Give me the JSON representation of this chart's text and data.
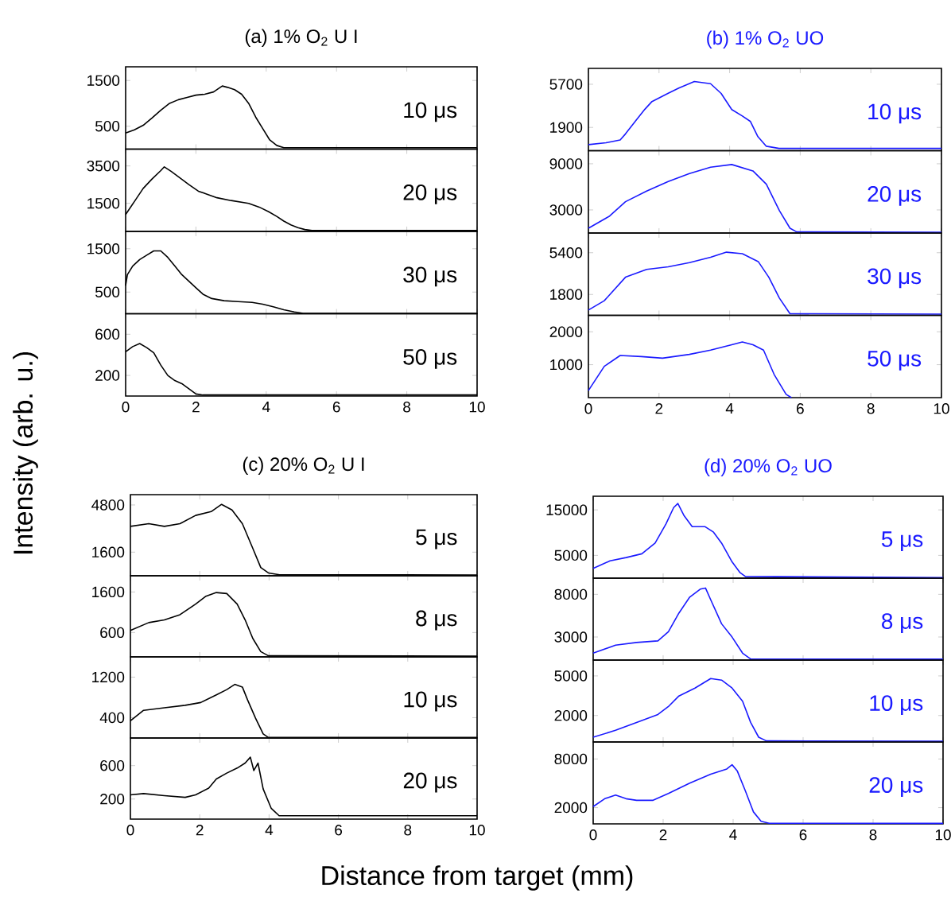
{
  "chart_data": [
    {
      "type": "line",
      "title": "(a) 1% O$_{2}$ U I",
      "color": "#000000",
      "annotations": [
        "10 μs"
      ],
      "xlim": [
        0,
        10
      ],
      "xticks": [
        0,
        2,
        4,
        6,
        8,
        10
      ],
      "ylim": [
        0,
        1800
      ],
      "yticks": [
        500,
        1500
      ],
      "tick_labels": "y",
      "x": [
        0,
        0.25,
        0.5,
        0.75,
        1,
        1.25,
        1.5,
        1.75,
        2,
        2.25,
        2.5,
        2.75,
        2.9,
        3.1,
        3.3,
        3.5,
        3.7,
        3.9,
        4.1,
        4.3,
        4.5,
        5,
        10
      ],
      "values": [
        350,
        420,
        520,
        680,
        850,
        1000,
        1080,
        1130,
        1180,
        1200,
        1250,
        1380,
        1350,
        1300,
        1200,
        1000,
        700,
        450,
        200,
        80,
        30,
        30,
        30
      ]
    },
    {
      "type": "line",
      "color": "#000000",
      "annotations": [
        "20 μs"
      ],
      "xlim": [
        0,
        10
      ],
      "xticks": [
        0,
        2,
        4,
        6,
        8,
        10
      ],
      "ylim": [
        0,
        4400
      ],
      "yticks": [
        1500,
        3500
      ],
      "tick_labels": "y",
      "x": [
        0,
        0.25,
        0.5,
        0.75,
        1,
        1.1,
        1.3,
        1.55,
        1.8,
        2.07,
        2.3,
        2.6,
        3.0,
        3.5,
        3.8,
        4.07,
        4.3,
        4.5,
        4.7,
        4.9,
        5.1,
        5.3,
        10
      ],
      "values": [
        900,
        1600,
        2300,
        2800,
        3250,
        3450,
        3200,
        2850,
        2500,
        2150,
        2000,
        1800,
        1650,
        1500,
        1300,
        1050,
        800,
        550,
        350,
        200,
        100,
        50,
        50
      ]
    },
    {
      "type": "line",
      "color": "#000000",
      "annotations": [
        "30 μs"
      ],
      "xlim": [
        0,
        10
      ],
      "xticks": [
        0,
        2,
        4,
        6,
        8,
        10
      ],
      "ylim": [
        0,
        1900
      ],
      "yticks": [
        500,
        1500
      ],
      "tick_labels": "y",
      "x": [
        0,
        0.05,
        0.2,
        0.4,
        0.6,
        0.8,
        1,
        1.2,
        1.4,
        1.6,
        1.8,
        2,
        2.2,
        2.45,
        2.8,
        3.2,
        3.6,
        3.9,
        4.2,
        4.5,
        4.8,
        5.05,
        10
      ],
      "values": [
        650,
        900,
        1100,
        1250,
        1350,
        1450,
        1450,
        1300,
        1100,
        900,
        750,
        600,
        450,
        350,
        300,
        280,
        260,
        220,
        160,
        90,
        40,
        10,
        10
      ]
    },
    {
      "type": "line",
      "ylabel": "Intensity (arb. u.)",
      "color": "#000000",
      "annotations": [
        "50 μs"
      ],
      "xlim": [
        0,
        10
      ],
      "xticks": [
        0,
        2,
        4,
        6,
        8,
        10
      ],
      "ylim": [
        0,
        800
      ],
      "yticks": [
        200,
        600
      ],
      "x": [
        0,
        0.2,
        0.4,
        0.6,
        0.8,
        1,
        1.2,
        1.4,
        1.6,
        1.8,
        2,
        2.2,
        10
      ],
      "values": [
        430,
        480,
        510,
        470,
        420,
        300,
        200,
        150,
        120,
        70,
        20,
        10,
        10
      ]
    },
    {
      "type": "line",
      "title": "(b) 1% O$_{2}$ UO",
      "color": "#1a1aff",
      "annotations": [
        "10 μs"
      ],
      "xlim": [
        0,
        10
      ],
      "xticks": [
        0,
        2,
        4,
        6,
        8,
        10
      ],
      "ylim": [
        -150,
        7100
      ],
      "yticks": [
        1900,
        5700
      ],
      "tick_labels": "y",
      "x": [
        0,
        0.5,
        0.9,
        1.05,
        1.35,
        1.6,
        1.8,
        2.25,
        2.56,
        3,
        3.46,
        3.76,
        4.06,
        4.36,
        4.59,
        4.8,
        5.04,
        5.4,
        10
      ],
      "values": [
        380,
        550,
        800,
        1330,
        2520,
        3500,
        4180,
        4890,
        5370,
        5940,
        5750,
        4890,
        3470,
        2900,
        2420,
        1090,
        240,
        50,
        50
      ]
    },
    {
      "type": "line",
      "color": "#1a1aff",
      "annotations": [
        "20 μs"
      ],
      "xlim": [
        0,
        10
      ],
      "xticks": [
        0,
        2,
        4,
        6,
        8,
        10
      ],
      "ylim": [
        0,
        10700
      ],
      "yticks": [
        3000,
        9000
      ],
      "tick_labels": "y",
      "x": [
        0,
        0.6,
        1.05,
        1.65,
        2.26,
        2.86,
        3.46,
        4.06,
        4.66,
        5.04,
        5.41,
        5.71,
        5.9,
        10
      ],
      "values": [
        620,
        2200,
        4070,
        5450,
        6700,
        7730,
        8560,
        8900,
        8070,
        6350,
        2900,
        620,
        140,
        100
      ]
    },
    {
      "type": "line",
      "color": "#1a1aff",
      "annotations": [
        "30 μs"
      ],
      "xlim": [
        0,
        10
      ],
      "xticks": [
        0,
        2,
        4,
        6,
        8,
        10
      ],
      "ylim": [
        0,
        7100
      ],
      "yticks": [
        1800,
        5400
      ],
      "tick_labels": "y",
      "x": [
        0,
        0.45,
        1.05,
        1.65,
        2.26,
        2.86,
        3.46,
        3.91,
        4.36,
        4.81,
        5.11,
        5.41,
        5.71,
        10
      ],
      "values": [
        450,
        1260,
        3285,
        3960,
        4185,
        4545,
        5000,
        5445,
        5310,
        4635,
        3285,
        1485,
        135,
        100
      ]
    },
    {
      "type": "line",
      "color": "#1a1aff",
      "annotations": [
        "50 μs"
      ],
      "xlim": [
        0,
        10
      ],
      "xticks": [
        0,
        2,
        4,
        6,
        8,
        10
      ],
      "ylim": [
        0,
        2500
      ],
      "yticks": [
        1000,
        2000
      ],
      "x": [
        0,
        0.45,
        0.9,
        1.5,
        2.1,
        2.86,
        3.46,
        4.06,
        4.36,
        4.66,
        4.96,
        5.26,
        5.6,
        5.75
      ],
      "values": [
        213,
        950,
        1280,
        1246,
        1197,
        1312,
        1443,
        1607,
        1690,
        1607,
        1443,
        705,
        100,
        0
      ]
    },
    {
      "type": "line",
      "title": "(c) 20% O$_{2}$ U I",
      "color": "#000000",
      "annotations": [
        "5 μs"
      ],
      "xlim": [
        0,
        10
      ],
      "xticks": [
        0,
        2,
        4,
        6,
        8,
        10
      ],
      "ylim": [
        0,
        5500
      ],
      "yticks": [
        1600,
        4800
      ],
      "tick_labels": "y",
      "x": [
        0,
        0.53,
        0.98,
        1.43,
        1.88,
        2.33,
        2.63,
        2.93,
        3.23,
        3.53,
        3.76,
        3.98,
        4.3,
        10
      ],
      "values": [
        3350,
        3530,
        3350,
        3530,
        4090,
        4350,
        4840,
        4460,
        3530,
        1860,
        560,
        190,
        70,
        50
      ]
    },
    {
      "type": "line",
      "color": "#000000",
      "annotations": [
        "8 μs"
      ],
      "xlim": [
        0,
        10
      ],
      "xticks": [
        0,
        2,
        4,
        6,
        8,
        10
      ],
      "ylim": [
        0,
        2000
      ],
      "yticks": [
        600,
        1600
      ],
      "tick_labels": "y",
      "x": [
        0,
        0.53,
        0.98,
        1.43,
        1.88,
        2.18,
        2.48,
        2.78,
        3.08,
        3.31,
        3.53,
        3.76,
        3.98,
        10
      ],
      "values": [
        650,
        845,
        910,
        1040,
        1300,
        1495,
        1586,
        1560,
        1300,
        910,
        455,
        130,
        26,
        20
      ]
    },
    {
      "type": "line",
      "color": "#000000",
      "annotations": [
        "10 μs"
      ],
      "xlim": [
        0,
        10
      ],
      "xticks": [
        0,
        2,
        4,
        6,
        8,
        10
      ],
      "ylim": [
        0,
        1600
      ],
      "yticks": [
        400,
        1200
      ],
      "tick_labels": "y",
      "x": [
        0,
        0.38,
        0.98,
        1.58,
        2.03,
        2.48,
        2.78,
        3.01,
        3.23,
        3.38,
        3.61,
        3.83,
        3.98,
        10
      ],
      "values": [
        340,
        545,
        595,
        645,
        700,
        850,
        955,
        1057,
        1005,
        750,
        390,
        80,
        10,
        10
      ]
    },
    {
      "type": "line",
      "xlabel": "Distance from target (mm)",
      "color": "#000000",
      "annotations": [
        "20 μs"
      ],
      "xlim": [
        0,
        10
      ],
      "xticks": [
        0,
        2,
        4,
        6,
        8,
        10
      ],
      "ylim": [
        -40,
        930
      ],
      "yticks": [
        200,
        600
      ],
      "x": [
        0,
        0.38,
        0.98,
        1.58,
        1.88,
        2.26,
        2.48,
        2.78,
        3.08,
        3.31,
        3.46,
        3.56,
        3.68,
        3.83,
        4.06,
        4.29,
        10
      ],
      "values": [
        250,
        265,
        240,
        220,
        250,
        330,
        440,
        510,
        570,
        630,
        700,
        540,
        630,
        320,
        90,
        0,
        0
      ]
    },
    {
      "type": "line",
      "title": "(d) 20% O$_{2}$ UO",
      "color": "#1a1aff",
      "annotations": [
        "5 μs"
      ],
      "xlim": [
        0,
        10
      ],
      "xticks": [
        0,
        2,
        4,
        6,
        8,
        10
      ],
      "ylim": [
        0,
        18000
      ],
      "yticks": [
        5000,
        15000
      ],
      "tick_labels": "y",
      "x": [
        0,
        0.48,
        0.94,
        1.39,
        1.77,
        2.08,
        2.3,
        2.42,
        2.6,
        2.83,
        3.2,
        3.44,
        3.67,
        3.97,
        4.2,
        4.35,
        10
      ],
      "values": [
        2140,
        3800,
        4520,
        5350,
        7700,
        11900,
        15500,
        16400,
        13700,
        11300,
        11300,
        10100,
        7700,
        3570,
        1190,
        360,
        100
      ]
    },
    {
      "type": "line",
      "color": "#1a1aff",
      "annotations": [
        "8 μs"
      ],
      "xlim": [
        0,
        10
      ],
      "xticks": [
        0,
        2,
        4,
        6,
        8,
        10
      ],
      "ylim": [
        300,
        9900
      ],
      "yticks": [
        3000,
        8000
      ],
      "tick_labels": "y",
      "x": [
        0,
        0.64,
        1.24,
        1.85,
        2.15,
        2.45,
        2.76,
        3.06,
        3.21,
        3.36,
        3.67,
        3.97,
        4.27,
        4.5,
        10
      ],
      "values": [
        1110,
        2050,
        2360,
        2550,
        3610,
        5800,
        7680,
        8610,
        8740,
        7360,
        4550,
        2990,
        1110,
        425,
        400
      ]
    },
    {
      "type": "line",
      "color": "#1a1aff",
      "annotations": [
        "10 μs"
      ],
      "xlim": [
        0,
        10
      ],
      "xticks": [
        0,
        2,
        4,
        6,
        8,
        10
      ],
      "ylim": [
        0,
        6200
      ],
      "yticks": [
        2000,
        5000
      ],
      "tick_labels": "y",
      "x": [
        0,
        0.64,
        1.24,
        1.85,
        2.15,
        2.45,
        2.91,
        3.36,
        3.67,
        3.97,
        4.27,
        4.5,
        4.73,
        4.95,
        10
      ],
      "values": [
        360,
        880,
        1480,
        2080,
        2680,
        3480,
        4080,
        4800,
        4680,
        4080,
        3080,
        1480,
        360,
        80,
        50
      ]
    },
    {
      "type": "line",
      "color": "#1a1aff",
      "annotations": [
        "20 μs"
      ],
      "xlim": [
        0,
        10
      ],
      "xticks": [
        0,
        2,
        4,
        6,
        8,
        10
      ],
      "ylim": [
        0,
        10100
      ],
      "yticks": [
        2000,
        8000
      ],
      "x": [
        0,
        0.33,
        0.64,
        0.94,
        1.24,
        1.7,
        2.15,
        2.76,
        3.36,
        3.82,
        3.97,
        4.12,
        4.35,
        4.58,
        4.8,
        5.03,
        10
      ],
      "values": [
        2130,
        3100,
        3550,
        3100,
        2900,
        2900,
        3740,
        5030,
        6130,
        6770,
        7290,
        6510,
        4060,
        1480,
        320,
        65,
        60
      ]
    }
  ]
}
